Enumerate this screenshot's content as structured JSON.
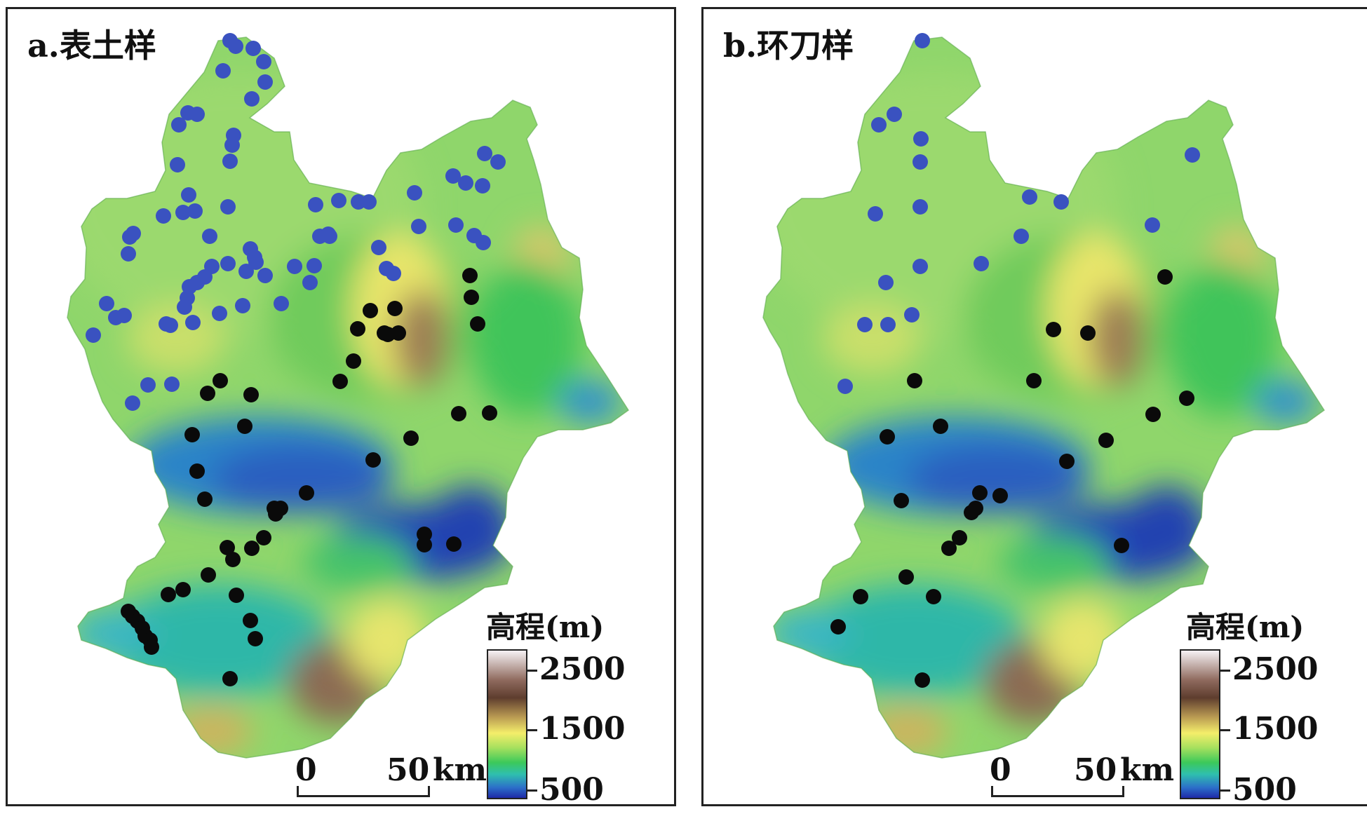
{
  "panels": [
    {
      "title": "a.表土样",
      "blue_sites": [
        [
          325,
          55
        ],
        [
          333,
          63
        ],
        [
          358,
          66
        ],
        [
          373,
          85
        ],
        [
          315,
          98
        ],
        [
          375,
          114
        ],
        [
          356,
          138
        ],
        [
          265,
          158
        ],
        [
          278,
          160
        ],
        [
          252,
          175
        ],
        [
          330,
          190
        ],
        [
          328,
          204
        ],
        [
          325,
          227
        ],
        [
          250,
          232
        ],
        [
          266,
          275
        ],
        [
          322,
          292
        ],
        [
          230,
          305
        ],
        [
          258,
          300
        ],
        [
          275,
          298
        ],
        [
          447,
          289
        ],
        [
          480,
          283
        ],
        [
          508,
          285
        ],
        [
          523,
          285
        ],
        [
          588,
          272
        ],
        [
          643,
          248
        ],
        [
          661,
          258
        ],
        [
          685,
          262
        ],
        [
          707,
          228
        ],
        [
          688,
          216
        ],
        [
          182,
          335
        ],
        [
          187,
          330
        ],
        [
          180,
          359
        ],
        [
          296,
          334
        ],
        [
          354,
          352
        ],
        [
          360,
          364
        ],
        [
          362,
          371
        ],
        [
          299,
          377
        ],
        [
          322,
          373
        ],
        [
          348,
          384
        ],
        [
          375,
          390
        ],
        [
          417,
          377
        ],
        [
          445,
          376
        ],
        [
          439,
          400
        ],
        [
          467,
          334
        ],
        [
          453,
          334
        ],
        [
          465,
          331
        ],
        [
          537,
          350
        ],
        [
          594,
          320
        ],
        [
          673,
          333
        ],
        [
          686,
          343
        ],
        [
          548,
          380
        ],
        [
          267,
          406
        ],
        [
          278,
          400
        ],
        [
          289,
          392
        ],
        [
          264,
          422
        ],
        [
          260,
          435
        ],
        [
          149,
          430
        ],
        [
          162,
          450
        ],
        [
          174,
          447
        ],
        [
          234,
          459
        ],
        [
          240,
          461
        ],
        [
          272,
          457
        ],
        [
          310,
          444
        ],
        [
          343,
          433
        ],
        [
          398,
          430
        ],
        [
          558,
          387
        ],
        [
          647,
          318
        ],
        [
          130,
          475
        ],
        [
          208,
          546
        ],
        [
          242,
          545
        ],
        [
          186,
          572
        ]
      ],
      "black_sites": [
        [
          667,
          390
        ],
        [
          669,
          421
        ],
        [
          678,
          459
        ],
        [
          560,
          437
        ],
        [
          525,
          440
        ],
        [
          565,
          472
        ],
        [
          550,
          474
        ],
        [
          545,
          472
        ],
        [
          507,
          466
        ],
        [
          501,
          512
        ],
        [
          482,
          541
        ],
        [
          311,
          540
        ],
        [
          293,
          558
        ],
        [
          355,
          560
        ],
        [
          271,
          617
        ],
        [
          346,
          605
        ],
        [
          583,
          622
        ],
        [
          695,
          586
        ],
        [
          651,
          587
        ],
        [
          529,
          653
        ],
        [
          278,
          669
        ],
        [
          289,
          709
        ],
        [
          434,
          700
        ],
        [
          397,
          722
        ],
        [
          390,
          730
        ],
        [
          388,
          722
        ],
        [
          373,
          764
        ],
        [
          356,
          779
        ],
        [
          321,
          778
        ],
        [
          329,
          795
        ],
        [
          602,
          759
        ],
        [
          602,
          774
        ],
        [
          644,
          773
        ],
        [
          294,
          817
        ],
        [
          258,
          838
        ],
        [
          237,
          845
        ],
        [
          334,
          846
        ],
        [
          354,
          882
        ],
        [
          361,
          908
        ],
        [
          180,
          869
        ],
        [
          186,
          876
        ],
        [
          193,
          883
        ],
        [
          200,
          893
        ],
        [
          204,
          904
        ],
        [
          211,
          910
        ],
        [
          213,
          920
        ],
        [
          325,
          965
        ]
      ]
    },
    {
      "title": "b.环刀样",
      "blue_sites": [
        [
          1312,
          55
        ],
        [
          1272,
          160
        ],
        [
          1250,
          175
        ],
        [
          1310,
          195
        ],
        [
          1309,
          228
        ],
        [
          1245,
          302
        ],
        [
          1309,
          292
        ],
        [
          1465,
          278
        ],
        [
          1510,
          285
        ],
        [
          1453,
          334
        ],
        [
          1396,
          373
        ],
        [
          1640,
          318
        ],
        [
          1697,
          218
        ],
        [
          1260,
          400
        ],
        [
          1309,
          377
        ],
        [
          1297,
          446
        ],
        [
          1230,
          460
        ],
        [
          1263,
          460
        ],
        [
          1202,
          548
        ]
      ],
      "black_sites": [
        [
          1658,
          392
        ],
        [
          1499,
          467
        ],
        [
          1548,
          472
        ],
        [
          1471,
          540
        ],
        [
          1301,
          540
        ],
        [
          1689,
          565
        ],
        [
          1641,
          588
        ],
        [
          1574,
          625
        ],
        [
          1518,
          655
        ],
        [
          1262,
          620
        ],
        [
          1338,
          605
        ],
        [
          1394,
          700
        ],
        [
          1388,
          722
        ],
        [
          1382,
          728
        ],
        [
          1423,
          704
        ],
        [
          1282,
          711
        ],
        [
          1596,
          775
        ],
        [
          1365,
          764
        ],
        [
          1350,
          779
        ],
        [
          1289,
          820
        ],
        [
          1328,
          848
        ],
        [
          1224,
          848
        ],
        [
          1192,
          891
        ],
        [
          1312,
          967
        ]
      ]
    }
  ],
  "legend": {
    "title": "高程(m)",
    "ticks": [
      "2500",
      "1500",
      "500"
    ]
  },
  "scale_bar": {
    "start": "0",
    "end": "50",
    "unit": "km"
  },
  "colors": {
    "blue_point": "#3a52c0",
    "black_point": "#0a0a0a"
  }
}
